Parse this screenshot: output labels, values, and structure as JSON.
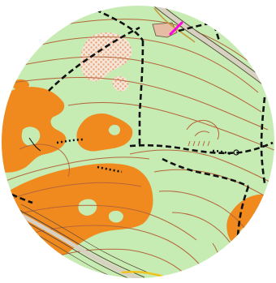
{
  "map": {
    "type": "orienteering-map-excerpt",
    "shape": "circle",
    "colors": {
      "background": "#ffffff",
      "open_land": "#c6ecb4",
      "rough_open": "#f08a1e",
      "contour": "#b5653a",
      "path": "#111111",
      "road_edge": "#5b4a3a",
      "road_fill": "#d9d0c4",
      "building_tint": "#e6bca4",
      "marker": "#ff00e0",
      "stream": "#c99b3d"
    }
  }
}
